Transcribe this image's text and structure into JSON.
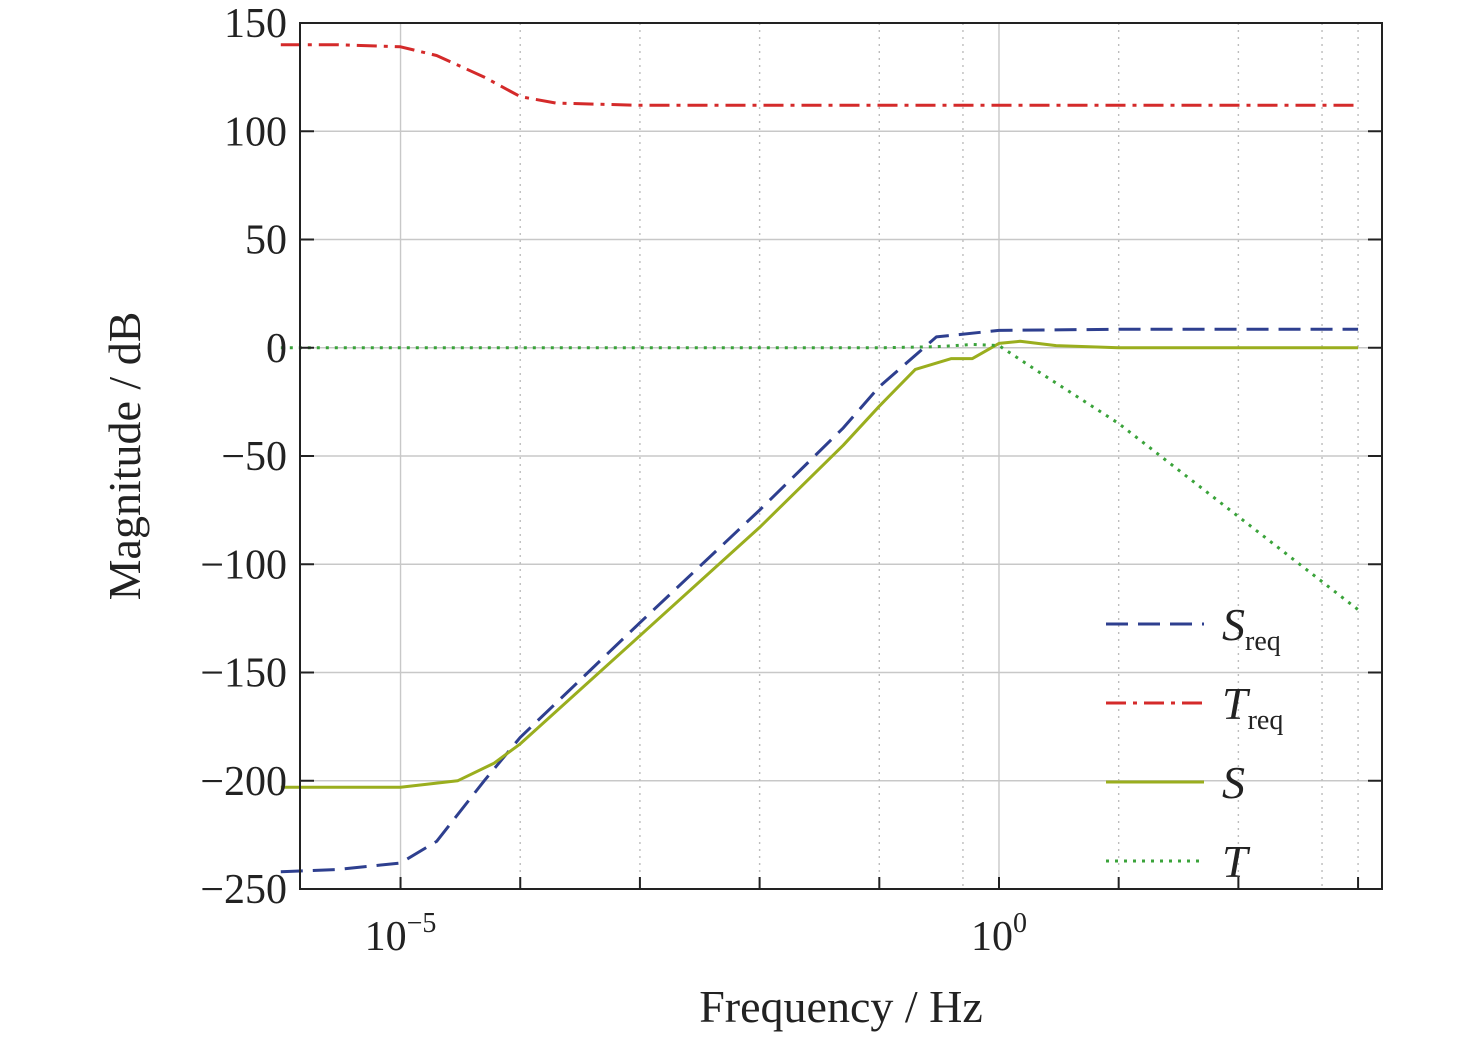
{
  "chart_data": {
    "type": "line",
    "xlabel": "Frequency / Hz",
    "ylabel": "Magnitude / dB",
    "xscale": "log",
    "xlim": [
      1e-06,
      1000.0
    ],
    "ylim": [
      -250,
      150
    ],
    "grid": true,
    "legend_placement": "bottom-right",
    "y_ticks": [
      150,
      100,
      50,
      0,
      -50,
      -100,
      -150,
      -200,
      -250
    ],
    "y_tick_labels": [
      "150",
      "100",
      "50",
      "0",
      "−50",
      "−100",
      "−150",
      "−200",
      "−250"
    ],
    "x_ticks": [
      {
        "base": "10",
        "exp": "−5",
        "value": 1e-05
      },
      {
        "base": "10",
        "exp": "0",
        "value": 1
      }
    ],
    "series": [
      {
        "name": "S",
        "sub": "req",
        "color": "#2e3f8f",
        "style": "dashed",
        "x": [
          1e-06,
          3e-06,
          1e-05,
          2e-05,
          5e-05,
          0.0001,
          0.001,
          0.01,
          0.05,
          0.1,
          0.3,
          1,
          10,
          100,
          1000
        ],
        "y": [
          -242,
          -241,
          -238,
          -228,
          -200,
          -180,
          -127,
          -75,
          -37,
          -18,
          5,
          8,
          8.5,
          8.5,
          8.5
        ]
      },
      {
        "name": "T",
        "sub": "req",
        "color": "#d42a2a",
        "style": "dashdot",
        "x": [
          1e-06,
          3e-06,
          1e-05,
          2e-05,
          5e-05,
          0.0001,
          0.0002,
          0.001,
          0.01,
          1,
          10,
          1000
        ],
        "y": [
          140,
          140,
          139,
          135,
          125,
          116,
          113,
          112,
          112,
          112,
          112,
          112
        ]
      },
      {
        "name": "S",
        "sub": "",
        "color": "#9aae1e",
        "style": "solid",
        "x": [
          1e-06,
          1e-05,
          3e-05,
          6e-05,
          0.0001,
          0.001,
          0.01,
          0.05,
          0.1,
          0.2,
          0.4,
          0.6,
          1,
          1.5,
          3,
          10,
          100,
          1000
        ],
        "y": [
          -203,
          -203,
          -200,
          -192,
          -183,
          -133,
          -83,
          -45,
          -27,
          -10,
          -5,
          -5,
          2,
          3,
          1,
          0,
          0,
          0
        ]
      },
      {
        "name": "T",
        "sub": "",
        "color": "#3aa33a",
        "style": "dotted",
        "x": [
          1e-06,
          0.001,
          0.1,
          0.3,
          0.6,
          1,
          2,
          10,
          100,
          1000
        ],
        "y": [
          0,
          0,
          0,
          0.5,
          1.5,
          1,
          -10,
          -35,
          -78,
          -121
        ]
      }
    ]
  }
}
